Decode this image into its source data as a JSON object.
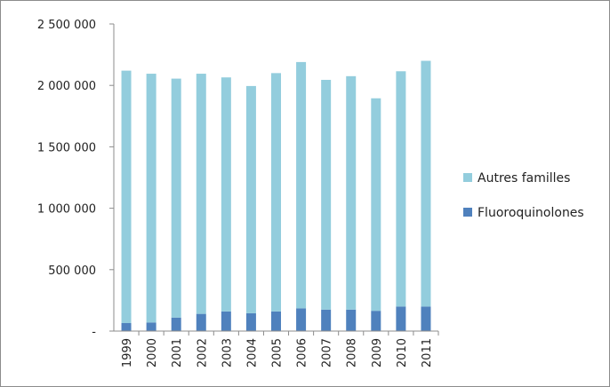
{
  "chart_data": {
    "type": "bar",
    "stacked": true,
    "categories": [
      "1999",
      "2000",
      "2001",
      "2002",
      "2003",
      "2004",
      "2005",
      "2006",
      "2007",
      "2008",
      "2009",
      "2010",
      "2011"
    ],
    "series": [
      {
        "name": "Fluoroquinolones",
        "color": "#4f81bd",
        "values": [
          65000,
          70000,
          110000,
          140000,
          160000,
          145000,
          160000,
          185000,
          175000,
          175000,
          165000,
          200000,
          200000
        ]
      },
      {
        "name": "Autres familles",
        "color": "#93cddd",
        "values": [
          2055000,
          2025000,
          1945000,
          1955000,
          1905000,
          1850000,
          1940000,
          2005000,
          1870000,
          1900000,
          1730000,
          1915000,
          2000000
        ]
      }
    ],
    "y_tick_labels": [
      "-",
      "500 000",
      "1 000 000",
      "1 500 000",
      "2 000 000",
      "2 500 000"
    ],
    "y_ticks": [
      0,
      500000,
      1000000,
      1500000,
      2000000,
      2500000
    ],
    "ylim": [
      0,
      2500000
    ],
    "grid": false,
    "legend": {
      "position": "right",
      "order": [
        "Autres familles",
        "Fluoroquinolones"
      ]
    },
    "x_tick_rotation": "vertical"
  }
}
